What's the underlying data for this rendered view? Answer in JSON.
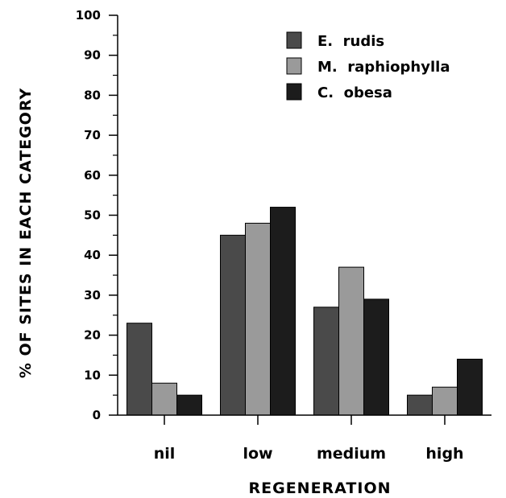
{
  "chart_data": {
    "type": "bar",
    "title": "",
    "xlabel": "REGENERATION",
    "ylabel": "% OF SITES IN EACH CATEGORY",
    "ylim": [
      0,
      100
    ],
    "yticks": [
      "0",
      "10",
      "20",
      "30",
      "40",
      "50",
      "60",
      "70",
      "80",
      "90",
      "100"
    ],
    "categories": [
      "nil",
      "low",
      "medium",
      "high"
    ],
    "legend_position": "top-right",
    "grid": false,
    "series": [
      {
        "name": "E.  rudis",
        "color": "#4a4a4a",
        "values": [
          23,
          45,
          27,
          5
        ]
      },
      {
        "name": "M.  raphiophylla",
        "color": "#9a9a9a",
        "values": [
          8,
          48,
          37,
          7
        ]
      },
      {
        "name": "C.  obesa",
        "color": "#1c1c1c",
        "values": [
          5,
          52,
          29,
          14
        ]
      }
    ]
  }
}
